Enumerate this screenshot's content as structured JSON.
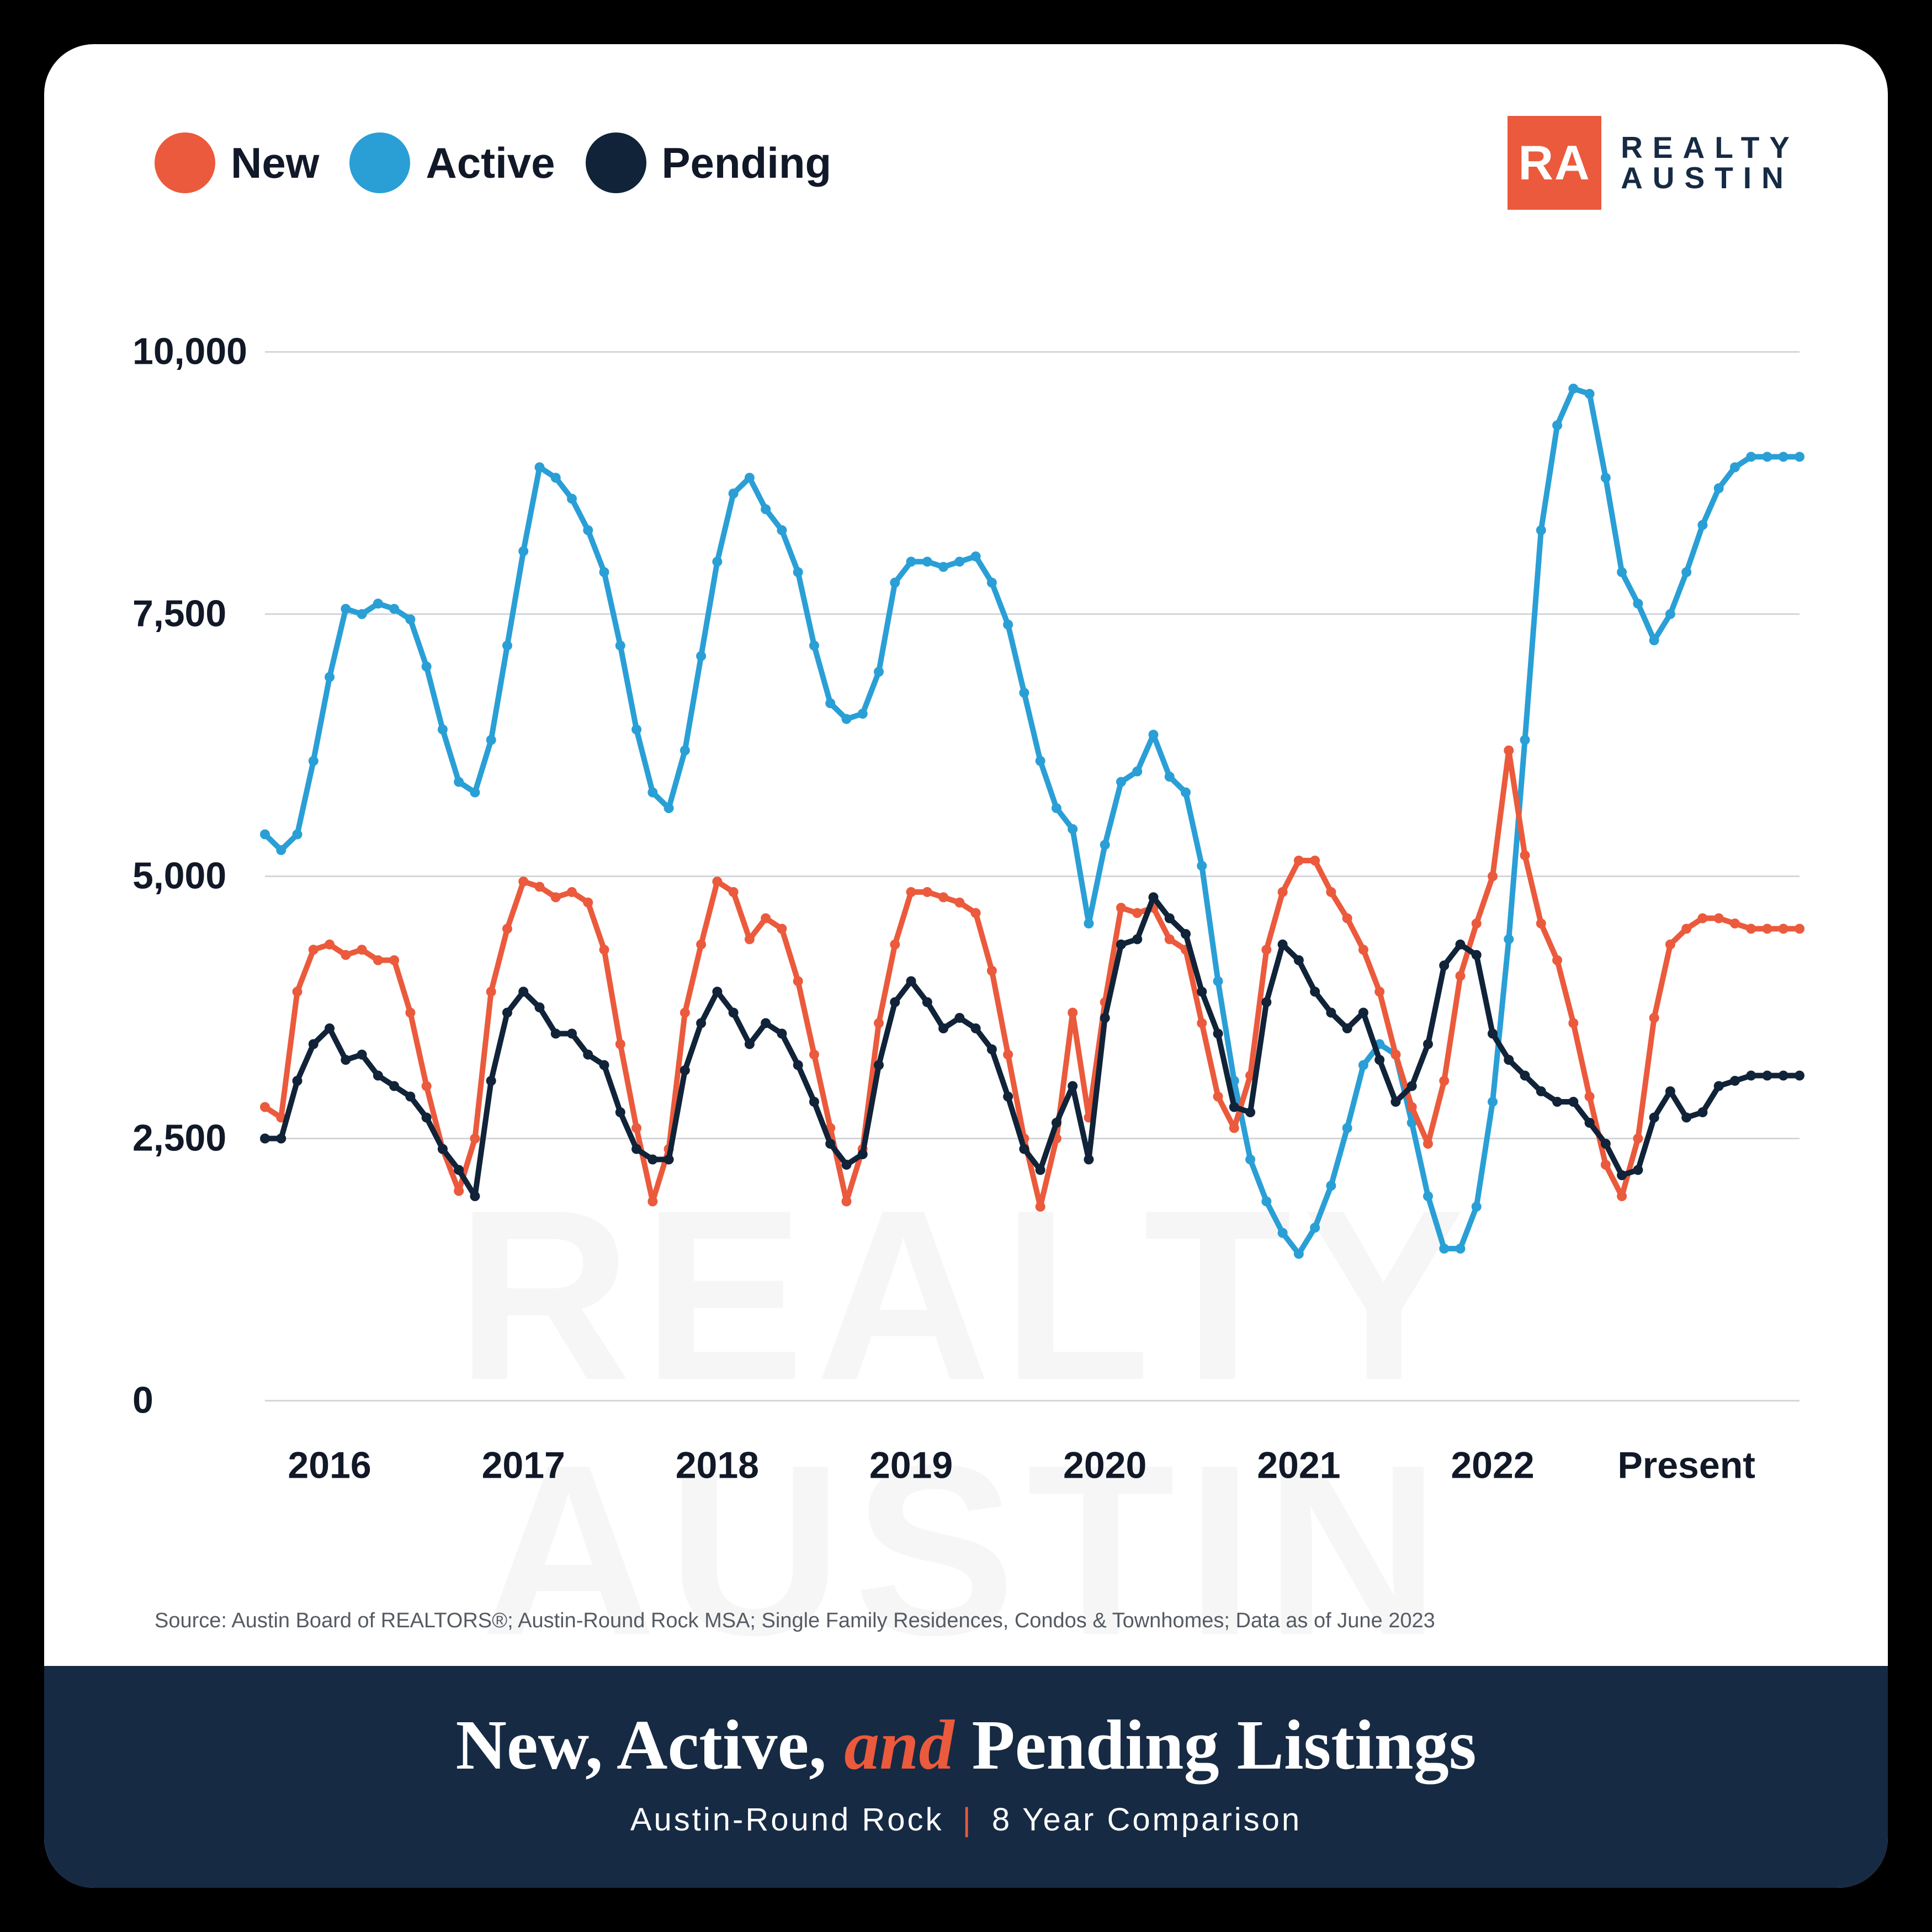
{
  "legend": {
    "items": [
      {
        "label": "New",
        "color": "#eb5a3c"
      },
      {
        "label": "Active",
        "color": "#2a9fd6"
      },
      {
        "label": "Pending",
        "color": "#102338"
      }
    ]
  },
  "brand": {
    "badge": "RA",
    "line1": "REALTY",
    "line2": "AUSTIN",
    "badge_bg": "#eb5a3c",
    "text_color": "#162a44"
  },
  "watermark": {
    "line1": "REALTY",
    "line2": "AUSTIN"
  },
  "chart": {
    "type": "line",
    "background_color": "#ffffff",
    "grid_color": "#d4d6d9",
    "marker_radius": 9,
    "line_width": 10,
    "ylim": [
      0,
      10000
    ],
    "yticks": [
      0,
      2500,
      5000,
      7500,
      10000
    ],
    "ytick_labels": [
      "0",
      "2,500",
      "5,000",
      "7,500",
      "10,000"
    ],
    "n_points": 96,
    "x_major_ticks_at": [
      4,
      16,
      28,
      40,
      52,
      64,
      76,
      88
    ],
    "x_major_labels": [
      "2016",
      "2017",
      "2018",
      "2019",
      "2020",
      "2021",
      "2022",
      "Present"
    ],
    "series": {
      "new": {
        "color": "#eb5a3c",
        "values": [
          2800,
          2700,
          3900,
          4300,
          4350,
          4250,
          4300,
          4200,
          4200,
          3700,
          3000,
          2400,
          2000,
          2500,
          3900,
          4500,
          4950,
          4900,
          4800,
          4850,
          4750,
          4300,
          3400,
          2600,
          1900,
          2400,
          3700,
          4350,
          4950,
          4850,
          4400,
          4600,
          4500,
          4000,
          3300,
          2600,
          1900,
          2400,
          3600,
          4350,
          4850,
          4850,
          4800,
          4750,
          4650,
          4100,
          3300,
          2500,
          1850,
          2500,
          3700,
          2700,
          3800,
          4700,
          4650,
          4700,
          4400,
          4300,
          3600,
          2900,
          2600,
          3100,
          4300,
          4850,
          5150,
          5150,
          4850,
          4600,
          4300,
          3900,
          3300,
          2800,
          2450,
          3050,
          4050,
          4550,
          5000,
          6200,
          5200,
          4550,
          4200,
          3600,
          2900,
          2250,
          1950,
          2500,
          3650,
          4350,
          4500,
          4600,
          4600,
          4550,
          4500,
          4500,
          4500,
          4500
        ]
      },
      "active": {
        "color": "#2a9fd6",
        "values": [
          5400,
          5250,
          5400,
          6100,
          6900,
          7550,
          7500,
          7600,
          7550,
          7450,
          7000,
          6400,
          5900,
          5800,
          6300,
          7200,
          8100,
          8900,
          8800,
          8600,
          8300,
          7900,
          7200,
          6400,
          5800,
          5650,
          6200,
          7100,
          8000,
          8650,
          8800,
          8500,
          8300,
          7900,
          7200,
          6650,
          6500,
          6550,
          6950,
          7800,
          8000,
          8000,
          7950,
          8000,
          8050,
          7800,
          7400,
          6750,
          6100,
          5650,
          5450,
          4550,
          5300,
          5900,
          6000,
          6350,
          5950,
          5800,
          5100,
          4000,
          3050,
          2300,
          1900,
          1600,
          1400,
          1650,
          2050,
          2600,
          3200,
          3400,
          3300,
          2650,
          1950,
          1450,
          1450,
          1850,
          2850,
          4400,
          6300,
          8300,
          9300,
          9650,
          9600,
          8800,
          7900,
          7600,
          7250,
          7500,
          7900,
          8350,
          8700,
          8900,
          9000,
          9000,
          9000,
          9000
        ]
      },
      "pending": {
        "color": "#102338",
        "values": [
          2500,
          2500,
          3050,
          3400,
          3550,
          3250,
          3300,
          3100,
          3000,
          2900,
          2700,
          2400,
          2200,
          1950,
          3050,
          3700,
          3900,
          3750,
          3500,
          3500,
          3300,
          3200,
          2750,
          2400,
          2300,
          2300,
          3150,
          3600,
          3900,
          3700,
          3400,
          3600,
          3500,
          3200,
          2850,
          2450,
          2250,
          2350,
          3200,
          3800,
          4000,
          3800,
          3550,
          3650,
          3550,
          3350,
          2900,
          2400,
          2200,
          2650,
          3000,
          2300,
          3650,
          4350,
          4400,
          4800,
          4600,
          4450,
          3900,
          3500,
          2800,
          2750,
          3800,
          4350,
          4200,
          3900,
          3700,
          3550,
          3700,
          3250,
          2850,
          3000,
          3400,
          4150,
          4350,
          4250,
          3500,
          3250,
          3100,
          2950,
          2850,
          2850,
          2650,
          2450,
          2150,
          2200,
          2700,
          2950,
          2700,
          2750,
          3000,
          3050,
          3100,
          3100,
          3100,
          3100
        ]
      }
    }
  },
  "source_text": "Source: Austin Board of REALTORS®; Austin-Round Rock MSA; Single Family Residences, Condos & Townhomes; Data as of June 2023",
  "footer": {
    "title_pre": "New, Active, ",
    "title_accent": "and",
    "title_post": " Pending Listings",
    "sub_left": "Austin-Round Rock",
    "sub_right": "8 Year Comparison",
    "bg": "#162a44",
    "accent": "#eb5a3c"
  }
}
